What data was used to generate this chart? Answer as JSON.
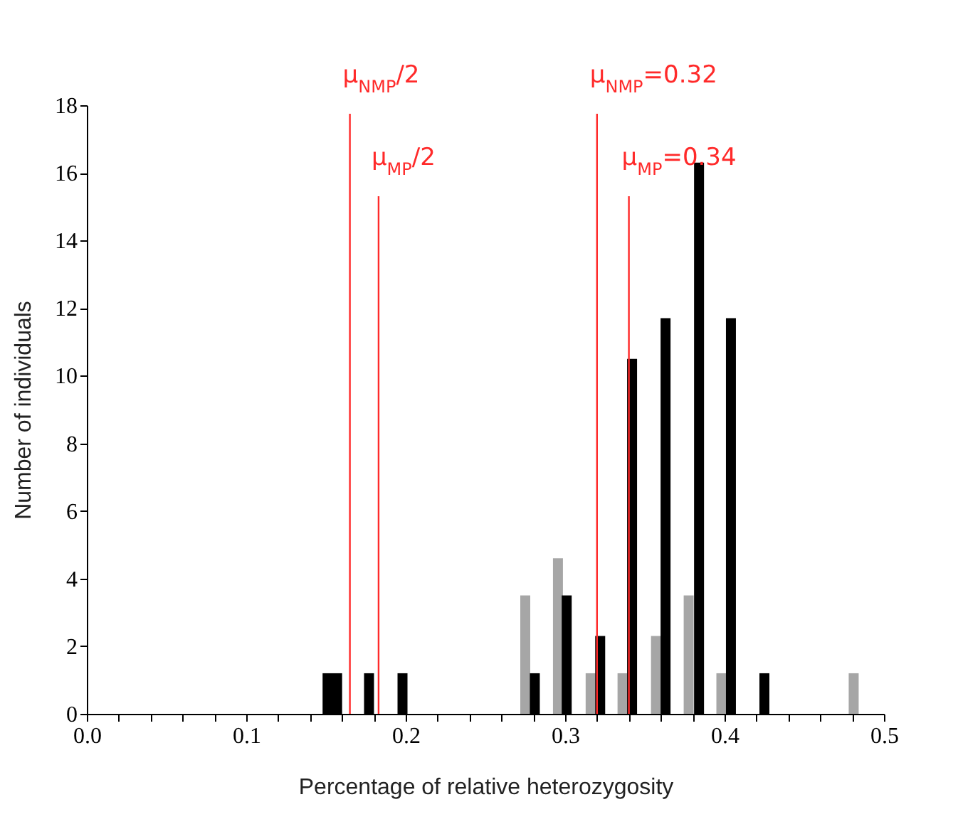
{
  "chart_data": {
    "type": "bar",
    "xlabel": "Percentage of relative heterozygosity",
    "ylabel": "Number of individuals",
    "series": [
      {
        "color": "#a6a6a6",
        "x": [
          0.275,
          0.2955,
          0.316,
          0.336,
          0.357,
          0.3775,
          0.398,
          0.481
        ],
        "values": [
          3.5,
          4.6,
          1.2,
          1.2,
          2.3,
          3.5,
          1.2,
          1.2
        ]
      },
      {
        "color": "#000000",
        "x": [
          0.151,
          0.157,
          0.177,
          0.198,
          0.281,
          0.301,
          0.322,
          0.342,
          0.363,
          0.384,
          0.404,
          0.425
        ],
        "values": [
          1.2,
          1.2,
          1.2,
          1.2,
          1.2,
          3.5,
          2.3,
          10.5,
          11.7,
          16.3,
          11.7,
          1.2
        ]
      }
    ],
    "xlim": [
      0,
      0.5
    ],
    "xticks": [
      {
        "value": 0,
        "label": "0.0"
      },
      {
        "value": 0.02,
        "label": null
      },
      {
        "value": 0.04,
        "label": null
      },
      {
        "value": 0.06,
        "label": null
      },
      {
        "value": 0.08,
        "label": null
      },
      0.1,
      {
        "value": 0.12,
        "label": null
      },
      {
        "value": 0.14,
        "label": null
      },
      {
        "value": 0.16,
        "label": null
      },
      {
        "value": 0.18,
        "label": null
      },
      0.2,
      {
        "value": 0.22,
        "label": null
      },
      {
        "value": 0.24,
        "label": null
      },
      {
        "value": 0.26,
        "label": null
      },
      {
        "value": 0.28,
        "label": null
      },
      0.3,
      {
        "value": 0.32,
        "label": null
      },
      {
        "value": 0.34,
        "label": null
      },
      {
        "value": 0.36,
        "label": null
      },
      {
        "value": 0.38,
        "label": null
      },
      0.4,
      {
        "value": 0.42,
        "label": null
      },
      {
        "value": 0.44,
        "label": null
      },
      {
        "value": 0.46,
        "label": null
      },
      {
        "value": 0.48,
        "label": null
      },
      0.5
    ],
    "ylim": [
      0,
      18
    ],
    "yticks": [
      0,
      2,
      4,
      6,
      8,
      10,
      12,
      14,
      16,
      18
    ],
    "ref_lines": [
      {
        "axis": "x",
        "value": 0.165,
        "label": "μ$_{NMP}$/2",
        "color": "#ff2a2a"
      },
      {
        "axis": "x",
        "value": 0.183,
        "label": "μ$_{MP}$/2",
        "color": "#ff2a2a"
      },
      {
        "axis": "x",
        "value": 0.32,
        "label": "μ$_{NMP}$=0.32",
        "color": "#ff2a2a"
      },
      {
        "axis": "x",
        "value": 0.34,
        "label": "μ$_{MP}$=0.34",
        "color": "#ff2a2a"
      }
    ]
  }
}
